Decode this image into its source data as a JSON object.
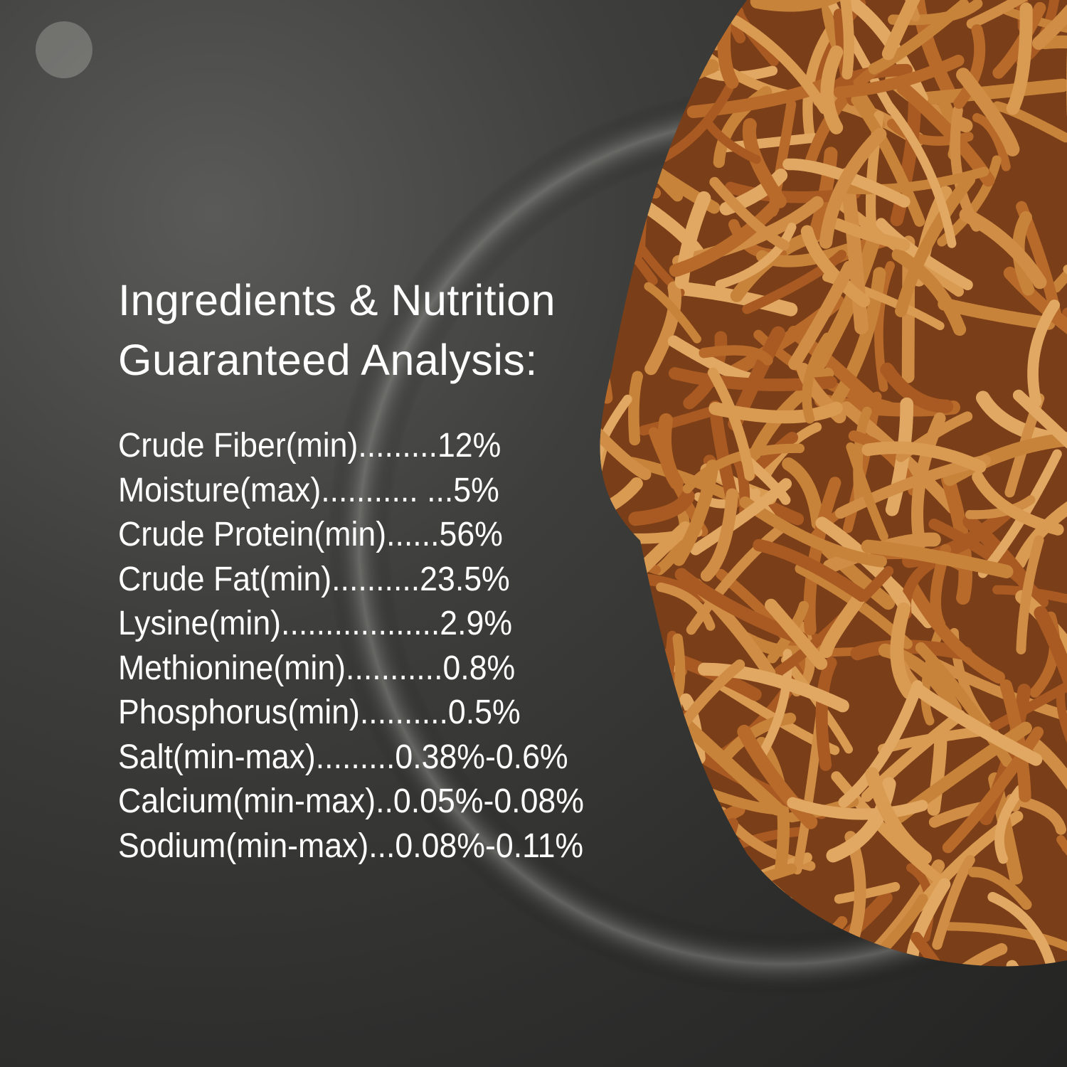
{
  "title_lines": [
    "Ingredients & Nutrition",
    "Guaranteed Analysis:"
  ],
  "analysis": [
    "Crude Fiber(min).........12%",
    "Moisture(max)........... ...5%",
    "Crude Protein(min)......56%",
    "Crude Fat(min)..........23.5%",
    "Lysine(min)..................2.9%",
    "Methionine(min)...........0.8%",
    "Phosphorus(min)..........0.5%",
    "Salt(min-max).........0.38%-0.6%",
    "Calcium(min-max)..0.05%-0.08%",
    "Sodium(min-max)...0.08%-0.11%"
  ],
  "colors": {
    "text": "#ffffff",
    "background": "#2e2e2d",
    "mealworm": "#c8833a"
  }
}
